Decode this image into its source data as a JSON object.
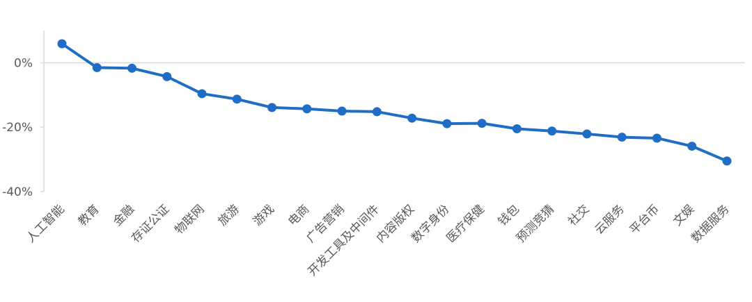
{
  "chart_data": {
    "type": "line",
    "title": "",
    "xlabel": "",
    "ylabel": "",
    "ylim": [
      -40,
      10
    ],
    "y_ticks": [
      {
        "value": 0,
        "label": "0%"
      },
      {
        "value": -20,
        "label": "-20%"
      },
      {
        "value": -40,
        "label": "-40%"
      }
    ],
    "grid": false,
    "legend": "none",
    "line_color": "#1F6DC4",
    "axis_color": "#D9D9D9",
    "categories": [
      "人工智能",
      "教育",
      "金融",
      "存证公证",
      "物联网",
      "旅游",
      "游戏",
      "电商",
      "广告营销",
      "开发工具及中间件",
      "内容版权",
      "数字身份",
      "医疗保健",
      "钱包",
      "预测竞猜",
      "社交",
      "云服务",
      "平台币",
      "文娱",
      "数据服务"
    ],
    "series": [
      {
        "values": [
          5.9,
          -1.5,
          -1.7,
          -4.3,
          -9.6,
          -11.3,
          -13.9,
          -14.3,
          -15.0,
          -15.2,
          -17.2,
          -18.9,
          -18.8,
          -20.5,
          -21.2,
          -22.1,
          -23.1,
          -23.4,
          -25.9,
          -30.5
        ]
      }
    ]
  }
}
